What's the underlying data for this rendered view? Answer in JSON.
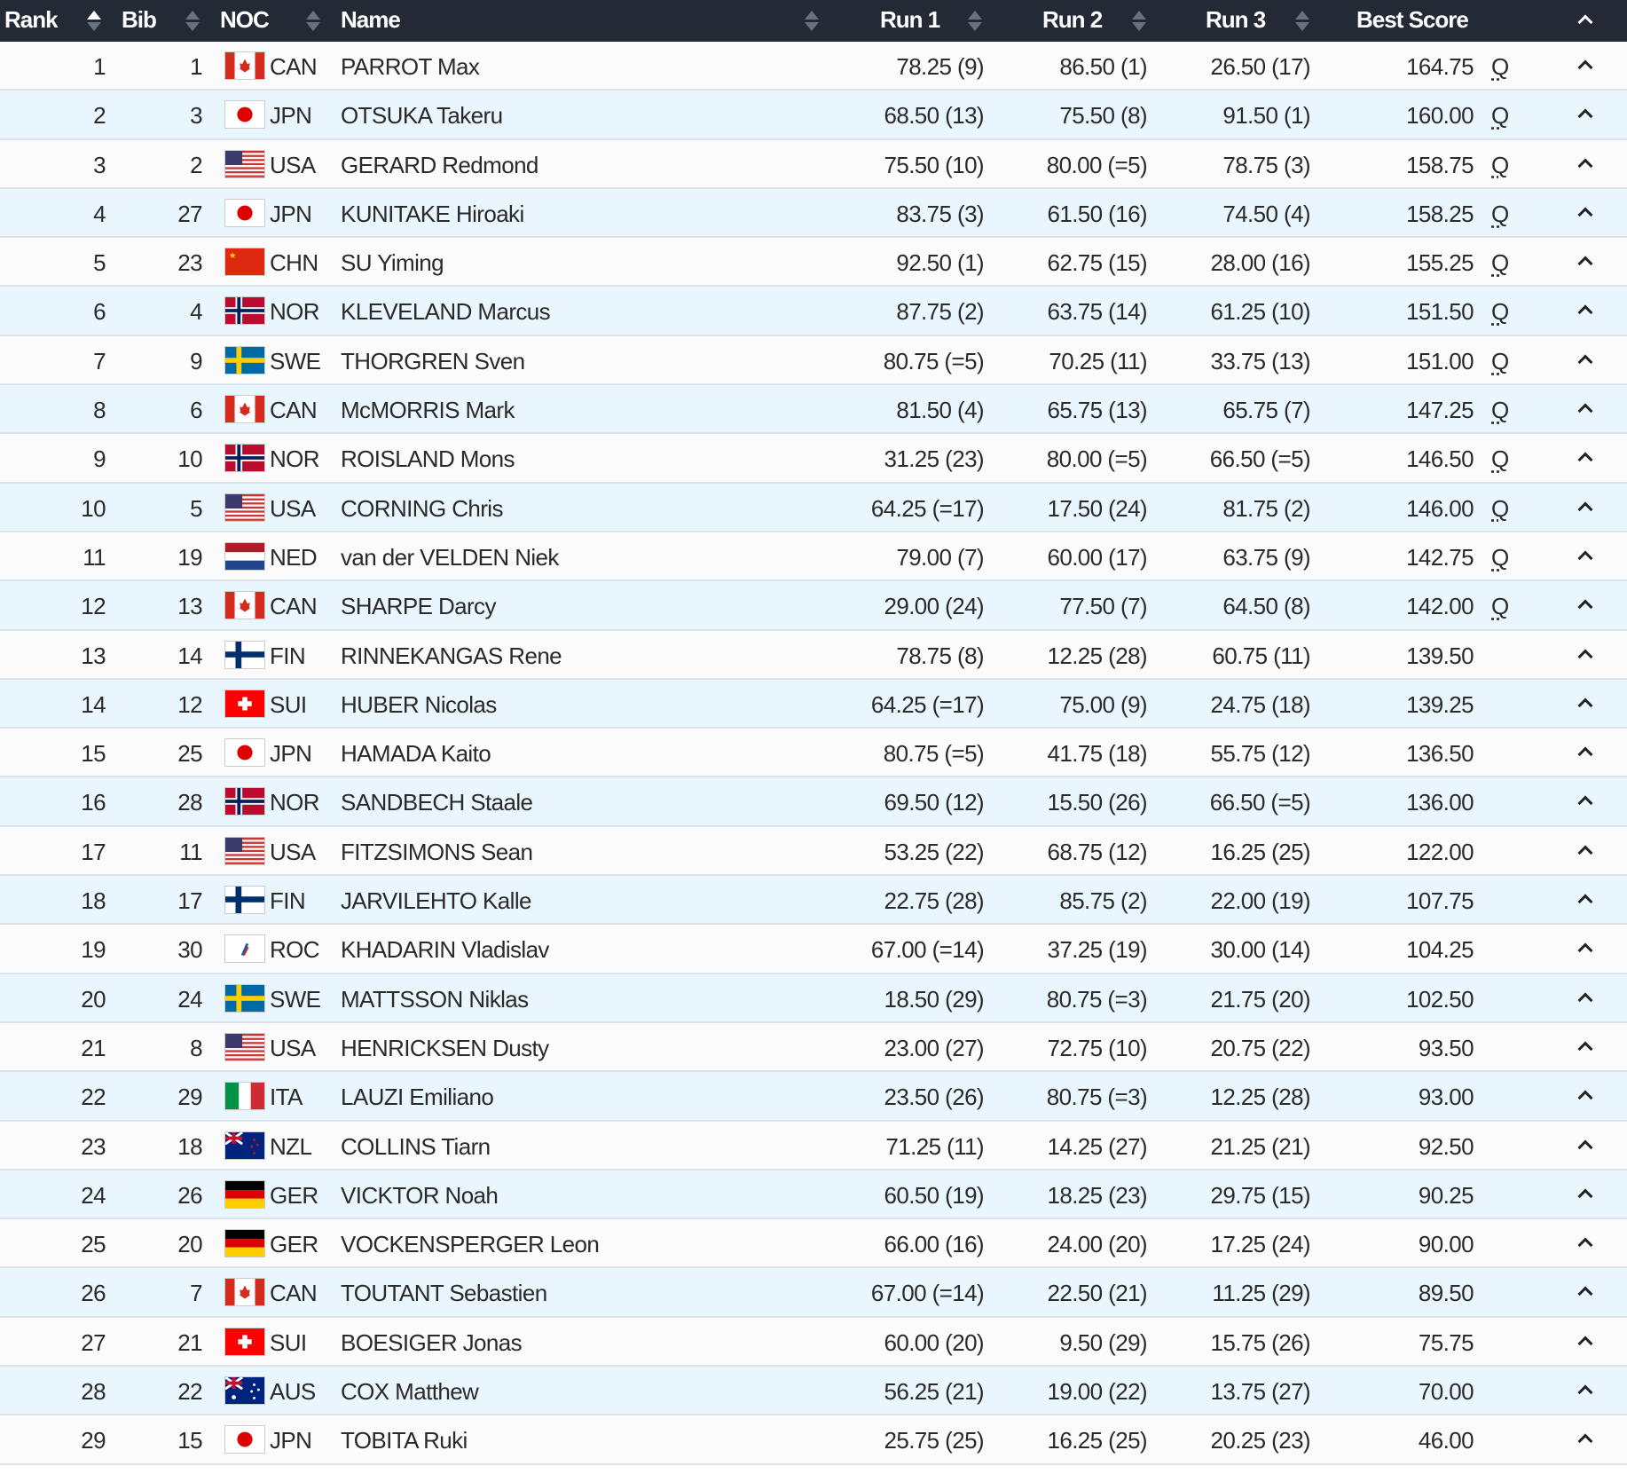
{
  "header": {
    "rank": "Rank",
    "bib": "Bib",
    "noc": "NOC",
    "name": "Name",
    "run1": "Run 1",
    "run2": "Run 2",
    "run3": "Run 3",
    "best": "Best Score"
  },
  "rows": [
    {
      "rank": "1",
      "bib": "1",
      "noc": "CAN",
      "name": "PARROT Max",
      "run1": "78.25 (9)",
      "run2": "86.50 (1)",
      "run3": "26.50 (17)",
      "best": "164.75",
      "q": "Q"
    },
    {
      "rank": "2",
      "bib": "3",
      "noc": "JPN",
      "name": "OTSUKA Takeru",
      "run1": "68.50 (13)",
      "run2": "75.50 (8)",
      "run3": "91.50 (1)",
      "best": "160.00",
      "q": "Q"
    },
    {
      "rank": "3",
      "bib": "2",
      "noc": "USA",
      "name": "GERARD Redmond",
      "run1": "75.50 (10)",
      "run2": "80.00 (=5)",
      "run3": "78.75 (3)",
      "best": "158.75",
      "q": "Q"
    },
    {
      "rank": "4",
      "bib": "27",
      "noc": "JPN",
      "name": "KUNITAKE Hiroaki",
      "run1": "83.75 (3)",
      "run2": "61.50 (16)",
      "run3": "74.50 (4)",
      "best": "158.25",
      "q": "Q"
    },
    {
      "rank": "5",
      "bib": "23",
      "noc": "CHN",
      "name": "SU Yiming",
      "run1": "92.50 (1)",
      "run2": "62.75 (15)",
      "run3": "28.00 (16)",
      "best": "155.25",
      "q": "Q"
    },
    {
      "rank": "6",
      "bib": "4",
      "noc": "NOR",
      "name": "KLEVELAND Marcus",
      "run1": "87.75 (2)",
      "run2": "63.75 (14)",
      "run3": "61.25 (10)",
      "best": "151.50",
      "q": "Q"
    },
    {
      "rank": "7",
      "bib": "9",
      "noc": "SWE",
      "name": "THORGREN Sven",
      "run1": "80.75 (=5)",
      "run2": "70.25 (11)",
      "run3": "33.75 (13)",
      "best": "151.00",
      "q": "Q"
    },
    {
      "rank": "8",
      "bib": "6",
      "noc": "CAN",
      "name": "McMORRIS Mark",
      "run1": "81.50 (4)",
      "run2": "65.75 (13)",
      "run3": "65.75 (7)",
      "best": "147.25",
      "q": "Q"
    },
    {
      "rank": "9",
      "bib": "10",
      "noc": "NOR",
      "name": "ROISLAND Mons",
      "run1": "31.25 (23)",
      "run2": "80.00 (=5)",
      "run3": "66.50 (=5)",
      "best": "146.50",
      "q": "Q"
    },
    {
      "rank": "10",
      "bib": "5",
      "noc": "USA",
      "name": "CORNING Chris",
      "run1": "64.25 (=17)",
      "run2": "17.50 (24)",
      "run3": "81.75 (2)",
      "best": "146.00",
      "q": "Q"
    },
    {
      "rank": "11",
      "bib": "19",
      "noc": "NED",
      "name": "van der VELDEN Niek",
      "run1": "79.00 (7)",
      "run2": "60.00 (17)",
      "run3": "63.75 (9)",
      "best": "142.75",
      "q": "Q"
    },
    {
      "rank": "12",
      "bib": "13",
      "noc": "CAN",
      "name": "SHARPE Darcy",
      "run1": "29.00 (24)",
      "run2": "77.50 (7)",
      "run3": "64.50 (8)",
      "best": "142.00",
      "q": "Q"
    },
    {
      "rank": "13",
      "bib": "14",
      "noc": "FIN",
      "name": "RINNEKANGAS Rene",
      "run1": "78.75 (8)",
      "run2": "12.25 (28)",
      "run3": "60.75 (11)",
      "best": "139.50",
      "q": ""
    },
    {
      "rank": "14",
      "bib": "12",
      "noc": "SUI",
      "name": "HUBER Nicolas",
      "run1": "64.25 (=17)",
      "run2": "75.00 (9)",
      "run3": "24.75 (18)",
      "best": "139.25",
      "q": ""
    },
    {
      "rank": "15",
      "bib": "25",
      "noc": "JPN",
      "name": "HAMADA Kaito",
      "run1": "80.75 (=5)",
      "run2": "41.75 (18)",
      "run3": "55.75 (12)",
      "best": "136.50",
      "q": ""
    },
    {
      "rank": "16",
      "bib": "28",
      "noc": "NOR",
      "name": "SANDBECH Staale",
      "run1": "69.50 (12)",
      "run2": "15.50 (26)",
      "run3": "66.50 (=5)",
      "best": "136.00",
      "q": ""
    },
    {
      "rank": "17",
      "bib": "11",
      "noc": "USA",
      "name": "FITZSIMONS Sean",
      "run1": "53.25 (22)",
      "run2": "68.75 (12)",
      "run3": "16.25 (25)",
      "best": "122.00",
      "q": ""
    },
    {
      "rank": "18",
      "bib": "17",
      "noc": "FIN",
      "name": "JARVILEHTO Kalle",
      "run1": "22.75 (28)",
      "run2": "85.75 (2)",
      "run3": "22.00 (19)",
      "best": "107.75",
      "q": ""
    },
    {
      "rank": "19",
      "bib": "30",
      "noc": "ROC",
      "name": "KHADARIN Vladislav",
      "run1": "67.00 (=14)",
      "run2": "37.25 (19)",
      "run3": "30.00 (14)",
      "best": "104.25",
      "q": ""
    },
    {
      "rank": "20",
      "bib": "24",
      "noc": "SWE",
      "name": "MATTSSON Niklas",
      "run1": "18.50 (29)",
      "run2": "80.75 (=3)",
      "run3": "21.75 (20)",
      "best": "102.50",
      "q": ""
    },
    {
      "rank": "21",
      "bib": "8",
      "noc": "USA",
      "name": "HENRICKSEN Dusty",
      "run1": "23.00 (27)",
      "run2": "72.75 (10)",
      "run3": "20.75 (22)",
      "best": "93.50",
      "q": ""
    },
    {
      "rank": "22",
      "bib": "29",
      "noc": "ITA",
      "name": "LAUZI Emiliano",
      "run1": "23.50 (26)",
      "run2": "80.75 (=3)",
      "run3": "12.25 (28)",
      "best": "93.00",
      "q": ""
    },
    {
      "rank": "23",
      "bib": "18",
      "noc": "NZL",
      "name": "COLLINS Tiarn",
      "run1": "71.25 (11)",
      "run2": "14.25 (27)",
      "run3": "21.25 (21)",
      "best": "92.50",
      "q": ""
    },
    {
      "rank": "24",
      "bib": "26",
      "noc": "GER",
      "name": "VICKTOR Noah",
      "run1": "60.50 (19)",
      "run2": "18.25 (23)",
      "run3": "29.75 (15)",
      "best": "90.25",
      "q": ""
    },
    {
      "rank": "25",
      "bib": "20",
      "noc": "GER",
      "name": "VOCKENSPERGER Leon",
      "run1": "66.00 (16)",
      "run2": "24.00 (20)",
      "run3": "17.25 (24)",
      "best": "90.00",
      "q": ""
    },
    {
      "rank": "26",
      "bib": "7",
      "noc": "CAN",
      "name": "TOUTANT Sebastien",
      "run1": "67.00 (=14)",
      "run2": "22.50 (21)",
      "run3": "11.25 (29)",
      "best": "89.50",
      "q": ""
    },
    {
      "rank": "27",
      "bib": "21",
      "noc": "SUI",
      "name": "BOESIGER Jonas",
      "run1": "60.00 (20)",
      "run2": "9.50 (29)",
      "run3": "15.75 (26)",
      "best": "75.75",
      "q": ""
    },
    {
      "rank": "28",
      "bib": "22",
      "noc": "AUS",
      "name": "COX Matthew",
      "run1": "56.25 (21)",
      "run2": "19.00 (22)",
      "run3": "13.75 (27)",
      "best": "70.00",
      "q": ""
    },
    {
      "rank": "29",
      "bib": "15",
      "noc": "JPN",
      "name": "TOBITA Ruki",
      "run1": "25.75 (25)",
      "run2": "16.25 (25)",
      "run3": "20.25 (23)",
      "best": "46.00",
      "q": ""
    }
  ]
}
